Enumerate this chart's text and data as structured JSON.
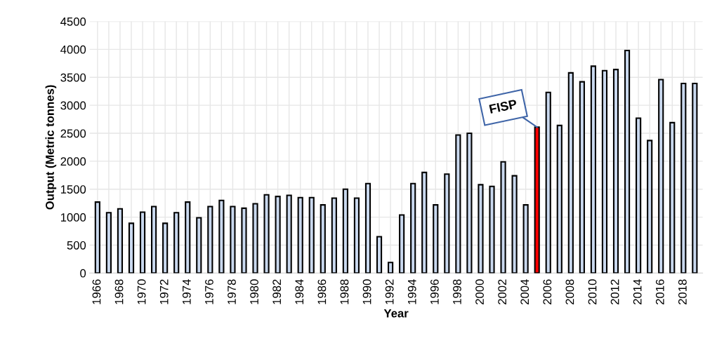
{
  "chart_data": {
    "type": "bar",
    "xlabel": "Year",
    "ylabel": "Output (Metric tonnes)",
    "categories": [
      "1966",
      null,
      "1968",
      null,
      "1970",
      null,
      "1972",
      null,
      "1974",
      null,
      "1976",
      null,
      "1978",
      null,
      "1980",
      null,
      "1982",
      null,
      "1984",
      null,
      "1986",
      null,
      "1988",
      null,
      "1990",
      null,
      "1992",
      null,
      "1994",
      null,
      "1996",
      null,
      "1998",
      null,
      "2000",
      null,
      "2002",
      null,
      "2004",
      null,
      "2006",
      null,
      "2008",
      null,
      "2010",
      null,
      "2012",
      null,
      "2014",
      null,
      "2016",
      null,
      "2018",
      null
    ],
    "values": [
      1270,
      1080,
      1150,
      890,
      1090,
      1190,
      890,
      1080,
      1270,
      990,
      1190,
      1300,
      1190,
      1160,
      1240,
      1400,
      1370,
      1390,
      1350,
      1350,
      1220,
      1340,
      1500,
      1340,
      1600,
      650,
      190,
      1040,
      1600,
      1800,
      1220,
      1770,
      2470,
      2500,
      1580,
      1550,
      1990,
      1740,
      1220,
      2610,
      3230,
      2640,
      3580,
      3420,
      3700,
      3620,
      3640,
      3980,
      2770,
      2370,
      3460,
      2690,
      3390,
      3390
    ],
    "colors": [
      "#c9d8ee",
      "#c9d8ee",
      "#c9d8ee",
      "#c9d8ee",
      "#c9d8ee",
      "#c9d8ee",
      "#c9d8ee",
      "#c9d8ee",
      "#c9d8ee",
      "#c9d8ee",
      "#c9d8ee",
      "#c9d8ee",
      "#c9d8ee",
      "#c9d8ee",
      "#c9d8ee",
      "#c9d8ee",
      "#c9d8ee",
      "#c9d8ee",
      "#c9d8ee",
      "#c9d8ee",
      "#c9d8ee",
      "#c9d8ee",
      "#c9d8ee",
      "#c9d8ee",
      "#c9d8ee",
      "#c9d8ee",
      "#c9d8ee",
      "#c9d8ee",
      "#c9d8ee",
      "#c9d8ee",
      "#c9d8ee",
      "#c9d8ee",
      "#c9d8ee",
      "#c9d8ee",
      "#c9d8ee",
      "#c9d8ee",
      "#c9d8ee",
      "#c9d8ee",
      "#c9d8ee",
      "#ff0000",
      "#c9d8ee",
      "#c9d8ee",
      "#c9d8ee",
      "#c9d8ee",
      "#c9d8ee",
      "#c9d8ee",
      "#c9d8ee",
      "#c9d8ee",
      "#c9d8ee",
      "#c9d8ee",
      "#c9d8ee",
      "#c9d8ee",
      "#c9d8ee",
      "#c9d8ee"
    ],
    "ylim": [
      0,
      4500
    ],
    "yticks": [
      0,
      500,
      1000,
      1500,
      2000,
      2500,
      3000,
      3500,
      4000,
      4500
    ],
    "grid": true,
    "legend": false,
    "annotations": [
      "FISP"
    ]
  }
}
